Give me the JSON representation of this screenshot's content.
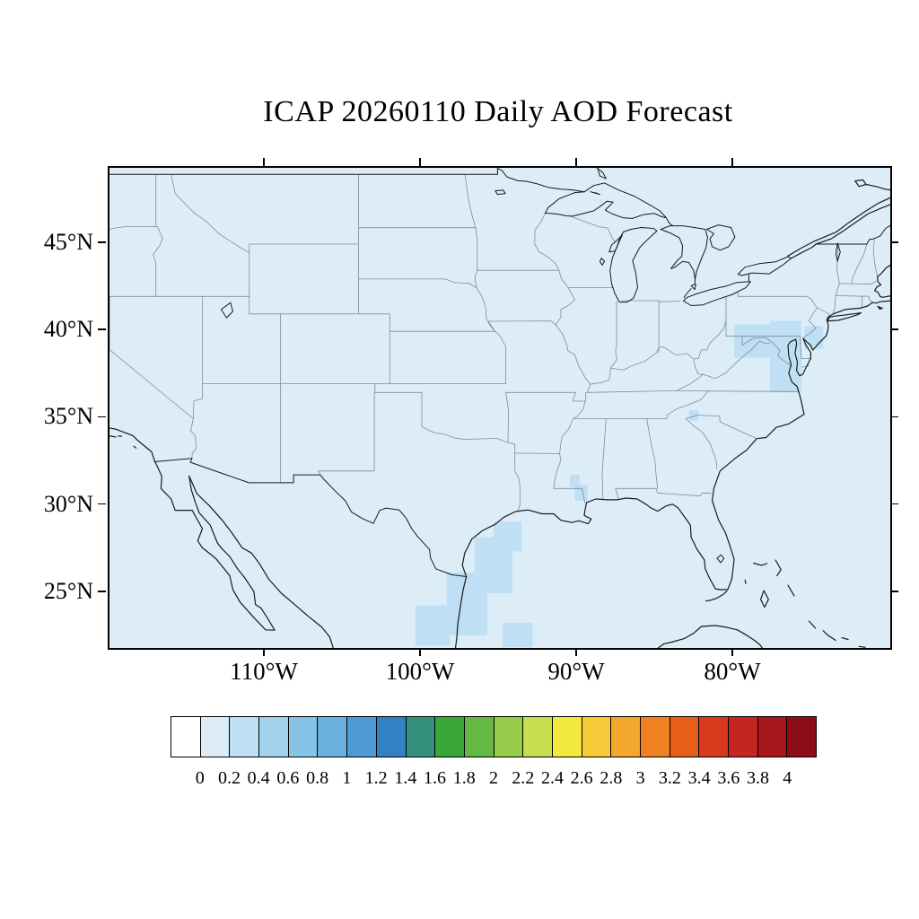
{
  "title": "ICAP 20260110 Daily AOD Forecast",
  "map": {
    "lat_tick_labels": [
      "45°N",
      "40°N",
      "35°N",
      "30°N",
      "25°N"
    ],
    "lat_tick_values": [
      45,
      40,
      35,
      30,
      25
    ],
    "lon_tick_labels": [
      "110°W",
      "100°W",
      "90°W",
      "80°W"
    ],
    "lon_tick_values": [
      110,
      100,
      90,
      80
    ],
    "background_color": "#dcedf8",
    "coast_color": "#1a1a1a",
    "state_border_color": "#7d8c99"
  },
  "colorbar": {
    "tick_labels": [
      "0",
      "0.2",
      "0.4",
      "0.6",
      "0.8",
      "1",
      "1.2",
      "1.4",
      "1.6",
      "1.8",
      "2",
      "2.2",
      "2.4",
      "2.6",
      "2.8",
      "3",
      "3.2",
      "3.4",
      "3.6",
      "3.8",
      "4"
    ],
    "cell_colors": [
      "#ffffff",
      "#dcedf8",
      "#bedff4",
      "#a2d2ee",
      "#86c3e7",
      "#69b2df",
      "#4d9ad4",
      "#3380c4",
      "#33917b",
      "#3aa63a",
      "#63b944",
      "#95cd4a",
      "#c6df50",
      "#f2e83f",
      "#f6ca38",
      "#f4a72d",
      "#ef8122",
      "#e75d1a",
      "#d93a1d",
      "#c4261f",
      "#a8171b",
      "#8c0d15"
    ]
  },
  "chart_data": {
    "type": "heatmap",
    "title": "ICAP 20260110 Daily AOD Forecast",
    "variable": "AOD",
    "region": "Continental United States",
    "colorbar_min": 0,
    "colorbar_max": 4,
    "colorbar_step": 0.2,
    "background_value_bin": "0-0.2",
    "elevated_regions": [
      {
        "area": "Texas and western Gulf of Mexico coast",
        "aod_bin": "0.2-0.4"
      },
      {
        "area": "Southern Mississippi / Louisiana",
        "aod_bin": "0.2-0.4"
      },
      {
        "area": "Mid-Atlantic: Chesapeake Bay, Delmarva, New Jersey",
        "aod_bin": "0.2-0.4"
      },
      {
        "area": "Western North Carolina (small spot)",
        "aod_bin": "0.2-0.4"
      }
    ],
    "patches": [
      {
        "lon": [
          100.4,
          98.2
        ],
        "lat": [
          22.0,
          24.3
        ],
        "bin": "0.2-0.4"
      },
      {
        "lon": [
          98.4,
          95.8
        ],
        "lat": [
          22.6,
          26.2
        ],
        "bin": "0.2-0.4"
      },
      {
        "lon": [
          96.6,
          94.2
        ],
        "lat": [
          25.0,
          28.2
        ],
        "bin": "0.2-0.4"
      },
      {
        "lon": [
          95.4,
          93.6
        ],
        "lat": [
          27.4,
          29.1
        ],
        "bin": "0.2-0.4"
      },
      {
        "lon": [
          94.8,
          92.9
        ],
        "lat": [
          21.9,
          23.3
        ],
        "bin": "0.2-0.4"
      },
      {
        "lon": [
          90.5,
          89.9
        ],
        "lat": [
          31.1,
          31.8
        ],
        "bin": "0.2-0.4"
      },
      {
        "lon": [
          90.2,
          89.4
        ],
        "lat": [
          30.3,
          31.2
        ],
        "bin": "0.2-0.4"
      },
      {
        "lon": [
          80.0,
          77.5
        ],
        "lat": [
          38.5,
          40.4
        ],
        "bin": "0.2-0.4"
      },
      {
        "lon": [
          77.7,
          75.7
        ],
        "lat": [
          36.5,
          40.6
        ],
        "bin": "0.2-0.4"
      },
      {
        "lon": [
          75.5,
          74.3
        ],
        "lat": [
          39.0,
          40.3
        ],
        "bin": "0.2-0.4"
      },
      {
        "lon": [
          82.9,
          82.3
        ],
        "lat": [
          34.9,
          35.5
        ],
        "bin": "0.2-0.4"
      }
    ]
  }
}
